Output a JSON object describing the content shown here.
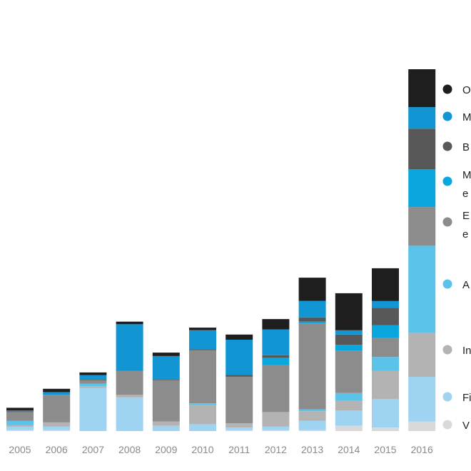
{
  "chart_data": {
    "type": "bar",
    "stacked": true,
    "grid": false,
    "legend_position": "right",
    "categories": [
      "2005",
      "2006",
      "2007",
      "2008",
      "2009",
      "2010",
      "2011",
      "2012",
      "2013",
      "2014",
      "2015",
      "2016"
    ],
    "series": [
      {
        "name": "V",
        "color": "#d9d9d9",
        "values": [
          1,
          1,
          0,
          0,
          0,
          0,
          1,
          1,
          1,
          6,
          4,
          11
        ]
      },
      {
        "name": "Fi",
        "color": "#9fd3f2",
        "values": [
          4,
          4,
          50,
          39,
          6,
          8,
          3,
          4,
          11,
          18,
          33,
          52
        ]
      },
      {
        "name": "In",
        "color": "#b3b3b3",
        "values": [
          2,
          5,
          2,
          3,
          5,
          22,
          5,
          17,
          11,
          11,
          33,
          51
        ]
      },
      {
        "name": "A",
        "color": "#5bc2ea",
        "values": [
          5,
          0,
          3,
          0,
          0,
          2,
          0,
          0,
          2,
          9,
          16,
          101
        ]
      },
      {
        "name": "E e",
        "color": "#8c8c8c",
        "values": [
          10,
          32,
          4,
          28,
          48,
          62,
          54,
          55,
          100,
          49,
          22,
          45
        ]
      },
      {
        "name": "M e",
        "color": "#0aa7df",
        "values": [
          0,
          0,
          0,
          0,
          0,
          0,
          0,
          8,
          2,
          7,
          15,
          44
        ]
      },
      {
        "name": "B",
        "color": "#585858",
        "values": [
          1,
          0,
          1,
          0,
          1,
          1,
          2,
          3,
          5,
          12,
          20,
          47
        ]
      },
      {
        "name": "M",
        "color": "#1196d3",
        "values": [
          1,
          3,
          5,
          54,
          27,
          22,
          41,
          30,
          19,
          5,
          8,
          25
        ]
      },
      {
        "name": "O",
        "color": "#1e1e1e",
        "values": [
          3,
          4,
          3,
          3,
          4,
          3,
          6,
          12,
          27,
          43,
          38,
          44
        ]
      }
    ],
    "ylim": [
      0,
      420
    ]
  }
}
